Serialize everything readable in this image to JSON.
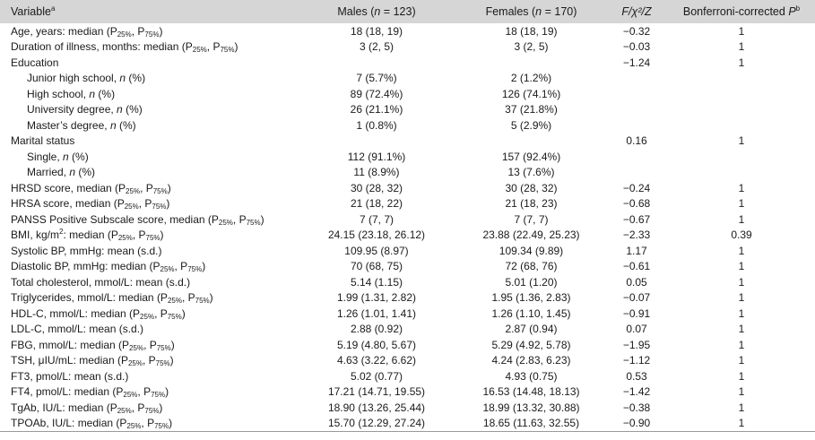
{
  "header": {
    "variable_label": "Variable",
    "variable_sup": "a",
    "males_label": "Males",
    "males_n": "n",
    "males_count": " = 123",
    "females_label": "Females",
    "females_n": "n",
    "females_count": " = 170",
    "stat_label": "F/χ²/Z",
    "pvalue_label": "Bonferroni-corrected ",
    "pvalue_p": "P",
    "pvalue_sup": "b"
  },
  "rows": [
    {
      "parts": [
        {
          "t": "Age, years: median (P"
        },
        {
          "sub": "25%"
        },
        {
          "t": ", P"
        },
        {
          "sub": "75%"
        },
        {
          "t": ")"
        }
      ],
      "males": "18 (18, 19)",
      "females": "18 (18, 19)",
      "stat": "−0.32",
      "p": "1"
    },
    {
      "parts": [
        {
          "t": "Duration of illness, months: median (P"
        },
        {
          "sub": "25%"
        },
        {
          "t": ", P"
        },
        {
          "sub": "75%"
        },
        {
          "t": ")"
        }
      ],
      "males": "3 (2, 5)",
      "females": "3 (2, 5)",
      "stat": "−0.03",
      "p": "1"
    },
    {
      "parts": [
        {
          "t": "Education"
        }
      ],
      "males": "",
      "females": "",
      "stat": "−1.24",
      "p": "1"
    },
    {
      "indent": true,
      "parts": [
        {
          "t": "Junior high school, "
        },
        {
          "i": "n"
        },
        {
          "t": " (%)"
        }
      ],
      "males": "7 (5.7%)",
      "females": "2 (1.2%)",
      "stat": "",
      "p": ""
    },
    {
      "indent": true,
      "parts": [
        {
          "t": "High school, "
        },
        {
          "i": "n"
        },
        {
          "t": " (%)"
        }
      ],
      "males": "89 (72.4%)",
      "females": "126 (74.1%)",
      "stat": "",
      "p": ""
    },
    {
      "indent": true,
      "parts": [
        {
          "t": "University degree, "
        },
        {
          "i": "n"
        },
        {
          "t": " (%)"
        }
      ],
      "males": "26 (21.1%)",
      "females": "37 (21.8%)",
      "stat": "",
      "p": ""
    },
    {
      "indent": true,
      "parts": [
        {
          "t": "Master’s degree, "
        },
        {
          "i": "n"
        },
        {
          "t": " (%)"
        }
      ],
      "males": "1 (0.8%)",
      "females": "5 (2.9%)",
      "stat": "",
      "p": ""
    },
    {
      "parts": [
        {
          "t": "Marital status"
        }
      ],
      "males": "",
      "females": "",
      "stat": "0.16",
      "p": "1"
    },
    {
      "indent": true,
      "parts": [
        {
          "t": "Single, "
        },
        {
          "i": "n"
        },
        {
          "t": " (%)"
        }
      ],
      "males": "112 (91.1%)",
      "females": "157 (92.4%)",
      "stat": "",
      "p": ""
    },
    {
      "indent": true,
      "parts": [
        {
          "t": "Married, "
        },
        {
          "i": "n"
        },
        {
          "t": " (%)"
        }
      ],
      "males": "11 (8.9%)",
      "females": "13 (7.6%)",
      "stat": "",
      "p": ""
    },
    {
      "parts": [
        {
          "t": "HRSD score, median (P"
        },
        {
          "sub": "25%"
        },
        {
          "t": ", P"
        },
        {
          "sub": "75%"
        },
        {
          "t": ")"
        }
      ],
      "males": "30 (28, 32)",
      "females": "30 (28, 32)",
      "stat": "−0.24",
      "p": "1"
    },
    {
      "parts": [
        {
          "t": "HRSA score, median (P"
        },
        {
          "sub": "25%"
        },
        {
          "t": ", P"
        },
        {
          "sub": "75%"
        },
        {
          "t": ")"
        }
      ],
      "males": "21 (18, 22)",
      "females": "21 (18, 23)",
      "stat": "−0.68",
      "p": "1"
    },
    {
      "parts": [
        {
          "t": "PANSS Positive Subscale score, median (P"
        },
        {
          "sub": "25%"
        },
        {
          "t": ", P"
        },
        {
          "sub": "75%"
        },
        {
          "t": ")"
        }
      ],
      "males": "7 (7, 7)",
      "females": "7 (7, 7)",
      "stat": "−0.67",
      "p": "1"
    },
    {
      "parts": [
        {
          "t": "BMI, kg/m"
        },
        {
          "sup": "2"
        },
        {
          "t": ": median (P"
        },
        {
          "sub": "25%"
        },
        {
          "t": ", P"
        },
        {
          "sub": "75%"
        },
        {
          "t": ")"
        }
      ],
      "males": "24.15 (23.18, 26.12)",
      "females": "23.88 (22.49, 25.23)",
      "stat": "−2.33",
      "p": "0.39"
    },
    {
      "parts": [
        {
          "t": "Systolic BP, mmHg: mean (s.d.)"
        }
      ],
      "males": "109.95 (8.97)",
      "females": "109.34 (9.89)",
      "stat": "1.17",
      "p": "1"
    },
    {
      "parts": [
        {
          "t": "Diastolic BP, mmHg: median (P"
        },
        {
          "sub": "25%"
        },
        {
          "t": ", P"
        },
        {
          "sub": "75%"
        },
        {
          "t": ")"
        }
      ],
      "males": "70 (68, 75)",
      "females": "72 (68, 76)",
      "stat": "−0.61",
      "p": "1"
    },
    {
      "parts": [
        {
          "t": "Total cholesterol, mmol/L: mean (s.d.)"
        }
      ],
      "males": "5.14 (1.15)",
      "females": "5.01 (1.20)",
      "stat": "0.05",
      "p": "1"
    },
    {
      "parts": [
        {
          "t": "Triglycerides, mmol/L: median (P"
        },
        {
          "sub": "25%"
        },
        {
          "t": ", P"
        },
        {
          "sub": "75%"
        },
        {
          "t": ")"
        }
      ],
      "males": "1.99 (1.31, 2.82)",
      "females": "1.95 (1.36, 2.83)",
      "stat": "−0.07",
      "p": "1"
    },
    {
      "parts": [
        {
          "t": "HDL-C, mmol/L: median (P"
        },
        {
          "sub": "25%"
        },
        {
          "t": ", P"
        },
        {
          "sub": "75%"
        },
        {
          "t": ")"
        }
      ],
      "males": "1.26 (1.01, 1.41)",
      "females": "1.26 (1.10, 1.45)",
      "stat": "−0.91",
      "p": "1"
    },
    {
      "parts": [
        {
          "t": "LDL-C, mmol/L: mean (s.d.)"
        }
      ],
      "males": "2.88 (0.92)",
      "females": "2.87 (0.94)",
      "stat": "0.07",
      "p": "1"
    },
    {
      "parts": [
        {
          "t": "FBG, mmol/L: median (P"
        },
        {
          "sub": "25%"
        },
        {
          "t": ", P"
        },
        {
          "sub": "75%"
        },
        {
          "t": ")"
        }
      ],
      "males": "5.19 (4.80, 5.67)",
      "females": "5.29 (4.92, 5.78)",
      "stat": "−1.95",
      "p": "1"
    },
    {
      "parts": [
        {
          "t": "TSH, μIU/mL: median (P"
        },
        {
          "sub": "25%"
        },
        {
          "t": ", P"
        },
        {
          "sub": "75%"
        },
        {
          "t": ")"
        }
      ],
      "males": "4.63 (3.22, 6.62)",
      "females": "4.24 (2.83, 6.23)",
      "stat": "−1.12",
      "p": "1"
    },
    {
      "parts": [
        {
          "t": "FT3, pmol/L: mean (s.d.)"
        }
      ],
      "males": "5.02 (0.77)",
      "females": "4.93 (0.75)",
      "stat": "0.53",
      "p": "1"
    },
    {
      "parts": [
        {
          "t": "FT4, pmol/L: median (P"
        },
        {
          "sub": "25%"
        },
        {
          "t": ", P"
        },
        {
          "sub": "75%"
        },
        {
          "t": ")"
        }
      ],
      "males": "17.21 (14.71, 19.55)",
      "females": "16.53 (14.48, 18.13)",
      "stat": "−1.42",
      "p": "1"
    },
    {
      "parts": [
        {
          "t": "TgAb, IU/L: median (P"
        },
        {
          "sub": "25%"
        },
        {
          "t": ", P"
        },
        {
          "sub": "75%"
        },
        {
          "t": ")"
        }
      ],
      "males": "18.90 (13.26, 25.44)",
      "females": "18.99 (13.32, 30.88)",
      "stat": "−0.38",
      "p": "1"
    },
    {
      "parts": [
        {
          "t": "TPOAb, IU/L: median (P"
        },
        {
          "sub": "25%"
        },
        {
          "t": ", P"
        },
        {
          "sub": "75%"
        },
        {
          "t": ")"
        }
      ],
      "males": "15.70 (12.29, 27.24)",
      "females": "18.65 (11.63, 32.55)",
      "stat": "−0.90",
      "p": "1"
    }
  ]
}
